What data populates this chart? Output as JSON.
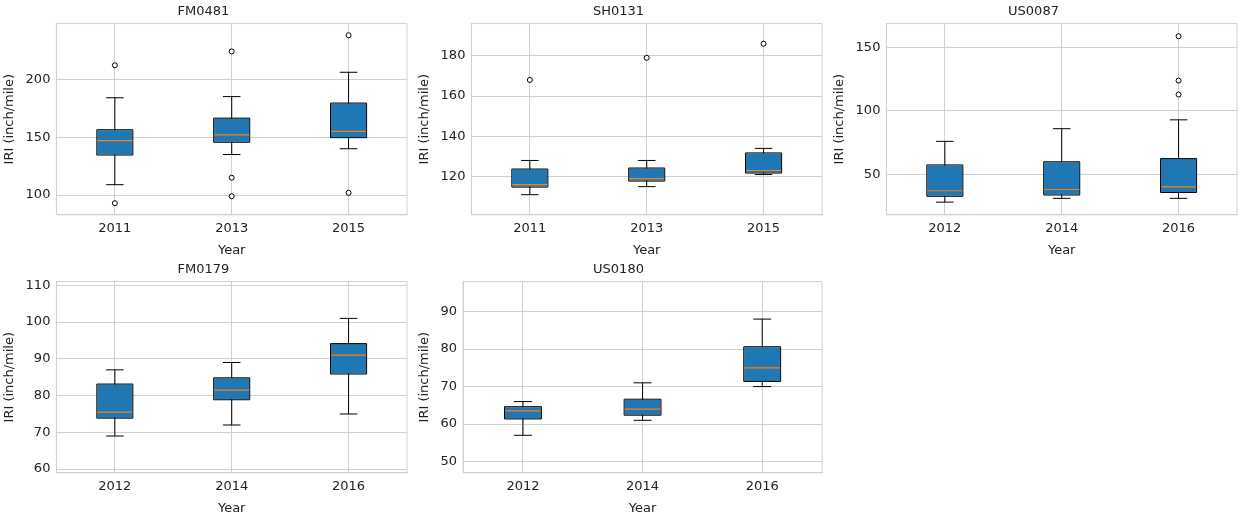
{
  "chart_data": [
    {
      "type": "box",
      "title": "FM0481",
      "xlabel": "Year",
      "ylabel": "IRI (inch/mile)",
      "categories": [
        "2011",
        "2013",
        "2015"
      ],
      "color": "#1f77b4",
      "ylim": [
        83,
        248
      ],
      "yticks": [
        100,
        150,
        200
      ],
      "grid": true,
      "boxes": [
        {
          "low": 109,
          "q1": 135,
          "median": 147,
          "q3": 156,
          "high": 184,
          "outliers": [
            212,
            93
          ]
        },
        {
          "low": 135,
          "q1": 146,
          "median": 152,
          "q3": 166,
          "high": 185,
          "outliers": [
            224,
            115,
            99
          ]
        },
        {
          "low": 140,
          "q1": 150,
          "median": 155,
          "q3": 179,
          "high": 206,
          "outliers": [
            238,
            102
          ]
        }
      ]
    },
    {
      "type": "box",
      "title": "SH0131",
      "xlabel": "Year",
      "ylabel": "IRI (inch/mile)",
      "categories": [
        "2011",
        "2013",
        "2015"
      ],
      "color": "#1f77b4",
      "ylim": [
        101,
        196
      ],
      "yticks": [
        120,
        140,
        160,
        180
      ],
      "grid": true,
      "boxes": [
        {
          "low": 111,
          "q1": 115,
          "median": 116,
          "q3": 123.5,
          "high": 128,
          "outliers": [
            168
          ]
        },
        {
          "low": 115,
          "q1": 118,
          "median": 119,
          "q3": 124,
          "high": 128,
          "outliers": [
            179
          ]
        },
        {
          "low": 121,
          "q1": 122,
          "median": 123,
          "q3": 131.5,
          "high": 134,
          "outliers": [
            186
          ]
        }
      ]
    },
    {
      "type": "box",
      "title": "US0087",
      "xlabel": "Year",
      "ylabel": "IRI (inch/mile)",
      "categories": [
        "2012",
        "2014",
        "2016"
      ],
      "color": "#1f77b4",
      "ylim": [
        18,
        169
      ],
      "yticks": [
        50,
        100,
        150
      ],
      "grid": true,
      "boxes": [
        {
          "low": 28,
          "q1": 33,
          "median": 37,
          "q3": 57,
          "high": 76
        },
        {
          "low": 31,
          "q1": 34,
          "median": 38,
          "q3": 59.5,
          "high": 86
        },
        {
          "low": 31,
          "q1": 36,
          "median": 40,
          "q3": 62,
          "high": 93,
          "outliers": [
            159,
            124,
            113
          ]
        }
      ]
    },
    {
      "type": "box",
      "title": "FM0179",
      "xlabel": "Year",
      "ylabel": "IRI (inch/mile)",
      "categories": [
        "2012",
        "2014",
        "2016"
      ],
      "color": "#1f77b4",
      "ylim": [
        59,
        111
      ],
      "yticks": [
        60,
        70,
        80,
        90,
        100,
        110
      ],
      "grid": true,
      "boxes": [
        {
          "low": 69,
          "q1": 74,
          "median": 75.5,
          "q3": 83,
          "high": 87
        },
        {
          "low": 72,
          "q1": 79,
          "median": 81.5,
          "q3": 84.7,
          "high": 89
        },
        {
          "low": 75,
          "q1": 86,
          "median": 91,
          "q3": 94,
          "high": 101
        }
      ]
    },
    {
      "type": "box",
      "title": "US0180",
      "xlabel": "Year",
      "ylabel": "IRI (inch/mile)",
      "categories": [
        "2012",
        "2014",
        "2016"
      ],
      "color": "#1f77b4",
      "ylim": [
        47,
        98
      ],
      "yticks": [
        50,
        60,
        70,
        80,
        90
      ],
      "grid": true,
      "boxes": [
        {
          "low": 57,
          "q1": 61.5,
          "median": 63.5,
          "q3": 64.5,
          "high": 66
        },
        {
          "low": 61,
          "q1": 62.5,
          "median": 64,
          "q3": 66.5,
          "high": 71
        },
        {
          "low": 70,
          "q1": 71.5,
          "median": 75,
          "q3": 80.5,
          "high": 88
        }
      ]
    }
  ]
}
